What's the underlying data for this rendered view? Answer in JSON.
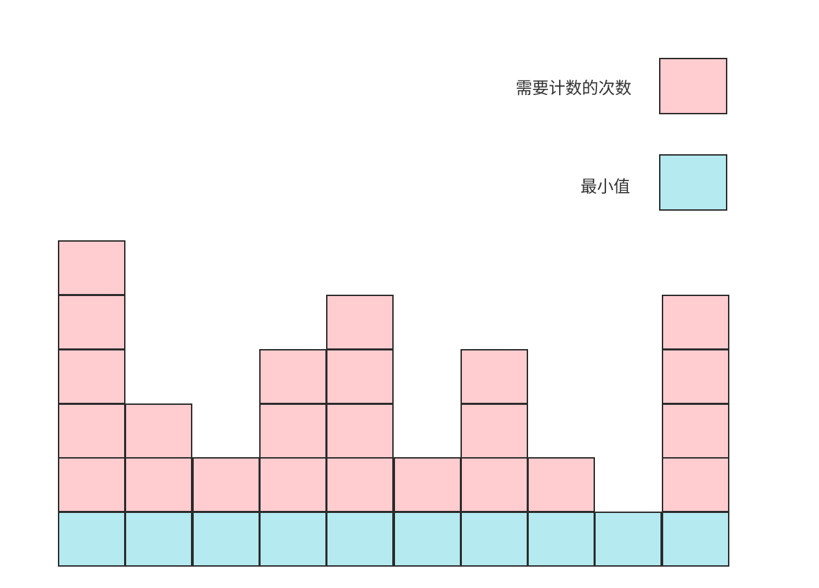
{
  "legend": {
    "count_label": "需要计数的次数",
    "min_label": "最小值"
  },
  "colors": {
    "count": "#ffccd0",
    "min": "#b4eaf0",
    "border": "#2b2b2b"
  },
  "diagram": {
    "column_count_blocks": [
      5,
      2,
      1,
      3,
      4,
      1,
      3,
      1,
      0,
      4
    ],
    "min_blocks_per_column": 1
  }
}
